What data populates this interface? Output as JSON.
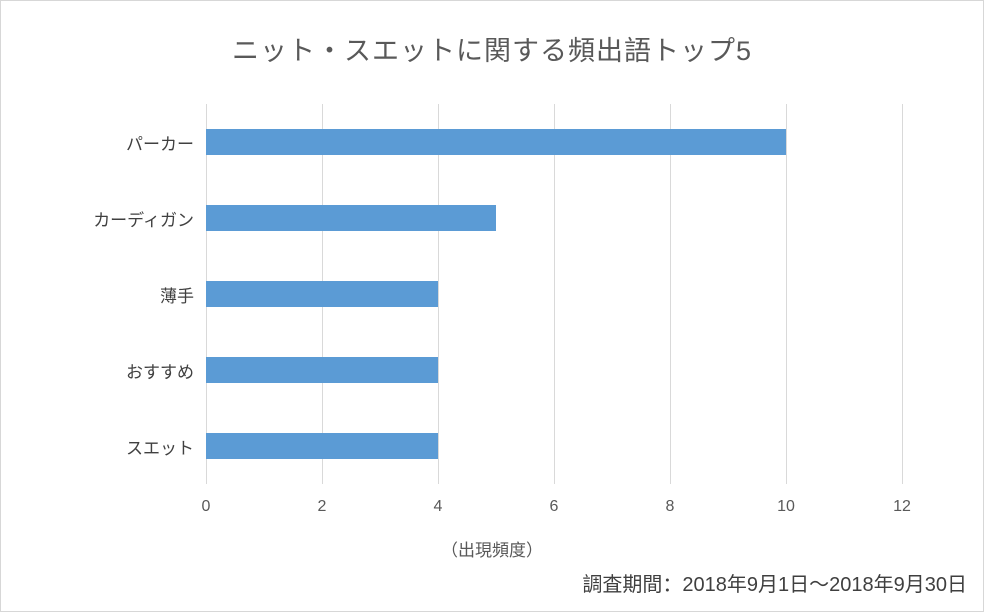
{
  "chart_data": {
    "type": "bar",
    "orientation": "horizontal",
    "title": "ニット・スエットに関する頻出語トップ5",
    "categories": [
      "パーカー",
      "カーディガン",
      "薄手",
      "おすすめ",
      "スエット"
    ],
    "values": [
      10,
      5,
      4,
      4,
      4
    ],
    "xlabel": "（出現頻度）",
    "xlim": [
      0,
      12
    ],
    "xticks": [
      0,
      2,
      4,
      6,
      8,
      10,
      12
    ],
    "grid": true,
    "legend": false,
    "bar_color": "#5b9bd5",
    "gridline_color": "#d9d9d9",
    "annotation": "調査期間：2018年9月1日～2018年9月30日"
  }
}
